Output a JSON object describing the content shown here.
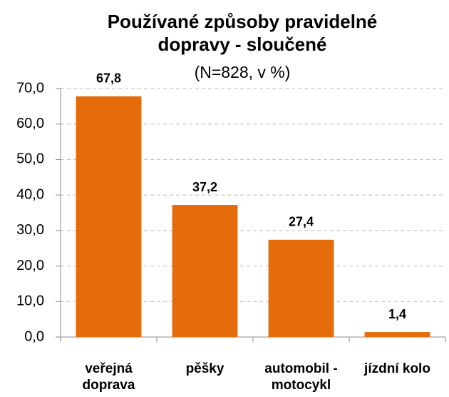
{
  "chart_data": {
    "type": "bar",
    "title": "Používané způsoby pravidelné dopravy - sloučené",
    "subtitle": "(N=828, v %)",
    "categories": [
      "veřejná doprava",
      "pěšky",
      "automobil - motocykl",
      "jízdní kolo"
    ],
    "values": [
      67.8,
      37.2,
      27.4,
      1.4
    ],
    "value_labels": [
      "67,8",
      "37,2",
      "27,4",
      "1,4"
    ],
    "color": "#e46c0a",
    "ylim": [
      0,
      70
    ],
    "yticks": [
      {
        "value": 0,
        "label": "0,0"
      },
      {
        "value": 10,
        "label": "10,0"
      },
      {
        "value": 20,
        "label": "20,0"
      },
      {
        "value": 30,
        "label": "30,0"
      },
      {
        "value": 40,
        "label": "40,0"
      },
      {
        "value": 50,
        "label": "50,0"
      },
      {
        "value": 60,
        "label": "60,0"
      },
      {
        "value": 70,
        "label": "70,0"
      }
    ],
    "grid": true
  }
}
